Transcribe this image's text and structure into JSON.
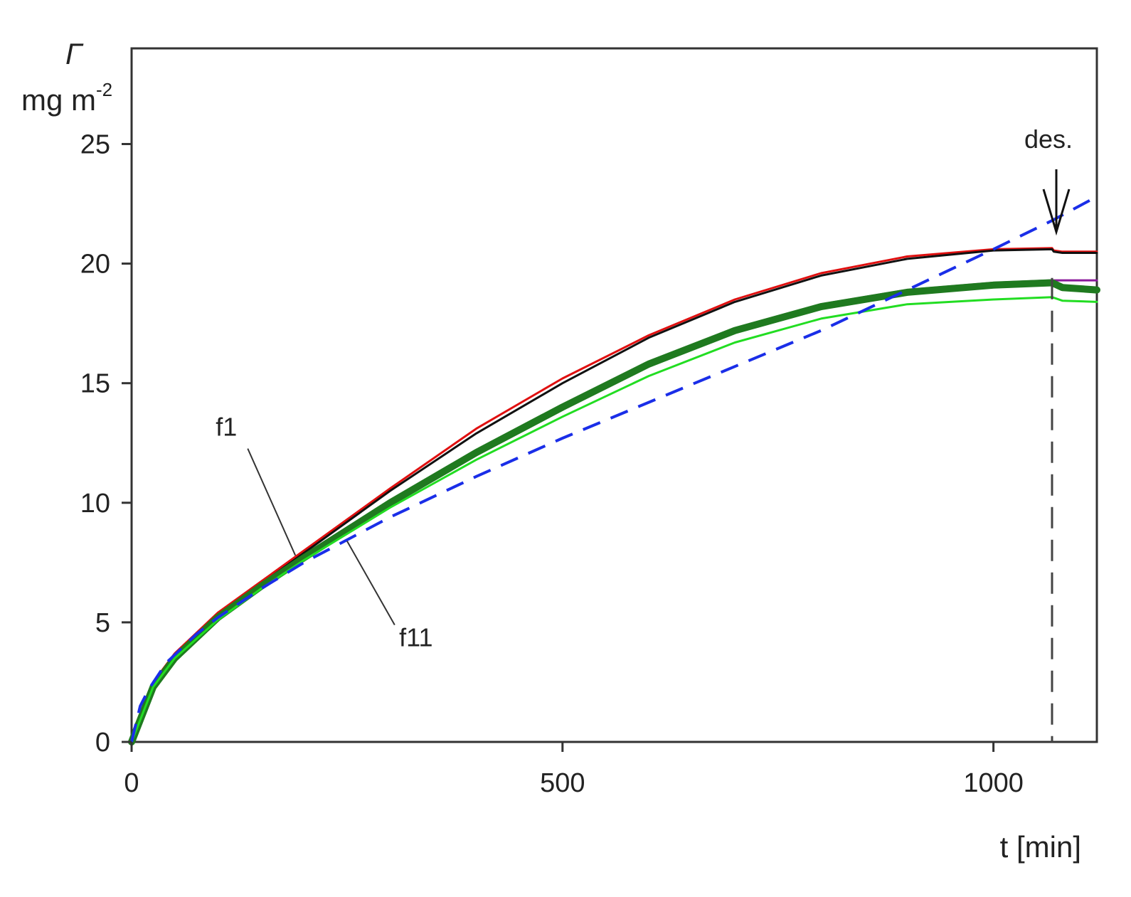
{
  "chart_data": {
    "type": "line",
    "title": "",
    "ylabel_symbol": "Γ",
    "ylabel_unit_base": "mg m",
    "ylabel_unit_exp": "-2",
    "xlabel": "t [min]",
    "xlim": [
      0,
      1120
    ],
    "ylim": [
      0,
      29
    ],
    "x_ticks": [
      0,
      500,
      1000
    ],
    "y_ticks": [
      0,
      5,
      10,
      15,
      20,
      25
    ],
    "grid": false,
    "legend": "none",
    "desorption": {
      "label": "des.",
      "t": 1068
    },
    "curve_labels": [
      {
        "text": "f1",
        "at": {
          "t": 110,
          "y": 12.8
        },
        "pointer_to": {
          "t": 190,
          "y": 7.8
        }
      },
      {
        "text": "f11",
        "at": {
          "t": 330,
          "y": 4.0
        },
        "pointer_to": {
          "t": 250,
          "y": 8.4
        }
      }
    ],
    "series": [
      {
        "color": "#e01010",
        "width": 3,
        "dash": "",
        "x": [
          0,
          25,
          50,
          100,
          150,
          200,
          300,
          400,
          500,
          600,
          700,
          800,
          900,
          1000,
          1068,
          1070,
          1080,
          1120
        ],
        "y": [
          0,
          2.5,
          3.7,
          5.4,
          6.7,
          8.0,
          10.6,
          13.1,
          15.2,
          17.0,
          18.5,
          19.6,
          20.3,
          20.6,
          20.65,
          20.55,
          20.5,
          20.5
        ]
      },
      {
        "color": "#111111",
        "width": 3,
        "dash": "",
        "x": [
          0,
          25,
          50,
          100,
          150,
          200,
          300,
          400,
          500,
          600,
          700,
          800,
          900,
          1000,
          1068,
          1070,
          1080,
          1120
        ],
        "y": [
          0,
          2.4,
          3.6,
          5.3,
          6.6,
          7.9,
          10.5,
          12.9,
          15.0,
          16.9,
          18.4,
          19.5,
          20.2,
          20.55,
          20.6,
          20.5,
          20.45,
          20.45
        ]
      },
      {
        "color": "#8a1a9a",
        "width": 3,
        "dash": "",
        "x": [
          0,
          25,
          50,
          100,
          150,
          200,
          300,
          400,
          500,
          600,
          700,
          800,
          900,
          1000,
          1068,
          1120
        ],
        "y": [
          0,
          2.2,
          3.4,
          5.1,
          6.4,
          7.6,
          9.9,
          12.0,
          13.9,
          15.7,
          17.2,
          18.3,
          18.9,
          19.2,
          19.3,
          19.3
        ]
      },
      {
        "color": "#1f7a1f",
        "width": 10,
        "dash": "",
        "x": [
          0,
          25,
          50,
          100,
          150,
          200,
          300,
          400,
          500,
          600,
          700,
          800,
          900,
          1000,
          1068,
          1080,
          1120
        ],
        "y": [
          0,
          2.3,
          3.5,
          5.2,
          6.5,
          7.7,
          10.0,
          12.1,
          14.0,
          15.8,
          17.2,
          18.2,
          18.8,
          19.1,
          19.2,
          19.0,
          18.9
        ]
      },
      {
        "color": "#22dd22",
        "width": 3,
        "dash": "",
        "x": [
          0,
          25,
          50,
          100,
          150,
          200,
          300,
          400,
          500,
          600,
          700,
          800,
          900,
          1000,
          1068,
          1080,
          1120
        ],
        "y": [
          0,
          2.3,
          3.5,
          5.1,
          6.4,
          7.6,
          9.8,
          11.8,
          13.6,
          15.3,
          16.7,
          17.7,
          18.3,
          18.5,
          18.6,
          18.45,
          18.4
        ]
      },
      {
        "color": "#1a2ee8",
        "width": 4,
        "dash": "26,16",
        "x": [
          0,
          10,
          20,
          40,
          75,
          100,
          150,
          200,
          300,
          400,
          500,
          600,
          700,
          800,
          900,
          1000,
          1068,
          1120
        ],
        "y": [
          0,
          1.5,
          2.2,
          3.3,
          4.5,
          5.2,
          6.4,
          7.5,
          9.4,
          11.1,
          12.7,
          14.2,
          15.7,
          17.2,
          18.9,
          20.6,
          21.8,
          22.8
        ]
      }
    ]
  }
}
